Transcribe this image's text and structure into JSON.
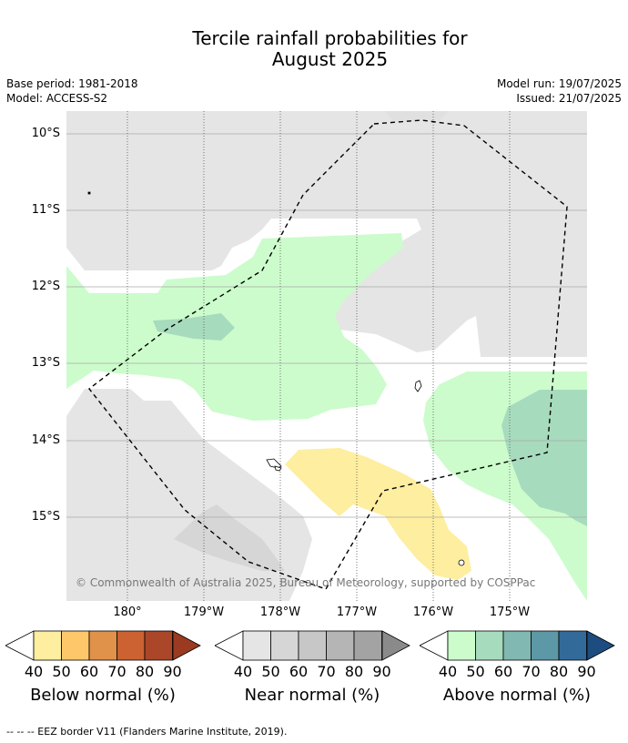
{
  "title_line1": "Tercile rainfall probabilities for",
  "title_line2": "August 2025",
  "base_period": "Base period: 1981-2018",
  "model": "Model: ACCESS-S2",
  "model_run": "Model run: 19/07/2025",
  "issued": "Issued: 21/07/2025",
  "lat_labels": [
    "10°S",
    "11°S",
    "12°S",
    "13°S",
    "14°S",
    "15°S"
  ],
  "lon_labels": [
    "180°",
    "179°W",
    "178°W",
    "177°W",
    "176°W",
    "175°W"
  ],
  "copyright": "© Commonwealth of Australia 2025, Bureau of Meteorology, supported by COSPPac",
  "legends": {
    "below": {
      "title": "Below normal (%)",
      "ticks": [
        "40",
        "50",
        "60",
        "70",
        "80",
        "90"
      ],
      "colors": [
        "#fdeea0",
        "#fec86a",
        "#e0914a",
        "#cc6232",
        "#ab4628",
        "#9a3a20"
      ]
    },
    "near": {
      "title": "Near normal (%)",
      "ticks": [
        "40",
        "50",
        "60",
        "70",
        "80",
        "90"
      ],
      "colors": [
        "#e5e5e5",
        "#d6d6d6",
        "#c7c7c7",
        "#b5b5b5",
        "#a3a3a3",
        "#8a8a8a"
      ]
    },
    "above": {
      "title": "Above normal (%)",
      "ticks": [
        "40",
        "50",
        "60",
        "70",
        "80",
        "90"
      ],
      "colors": [
        "#ccfccc",
        "#a7dbbd",
        "#82b8b2",
        "#5c98a6",
        "#326a9a",
        "#1d4d80"
      ]
    }
  },
  "footnote": "--  --  -- EEZ border V11 (Flanders Marine Institute, 2019)."
}
